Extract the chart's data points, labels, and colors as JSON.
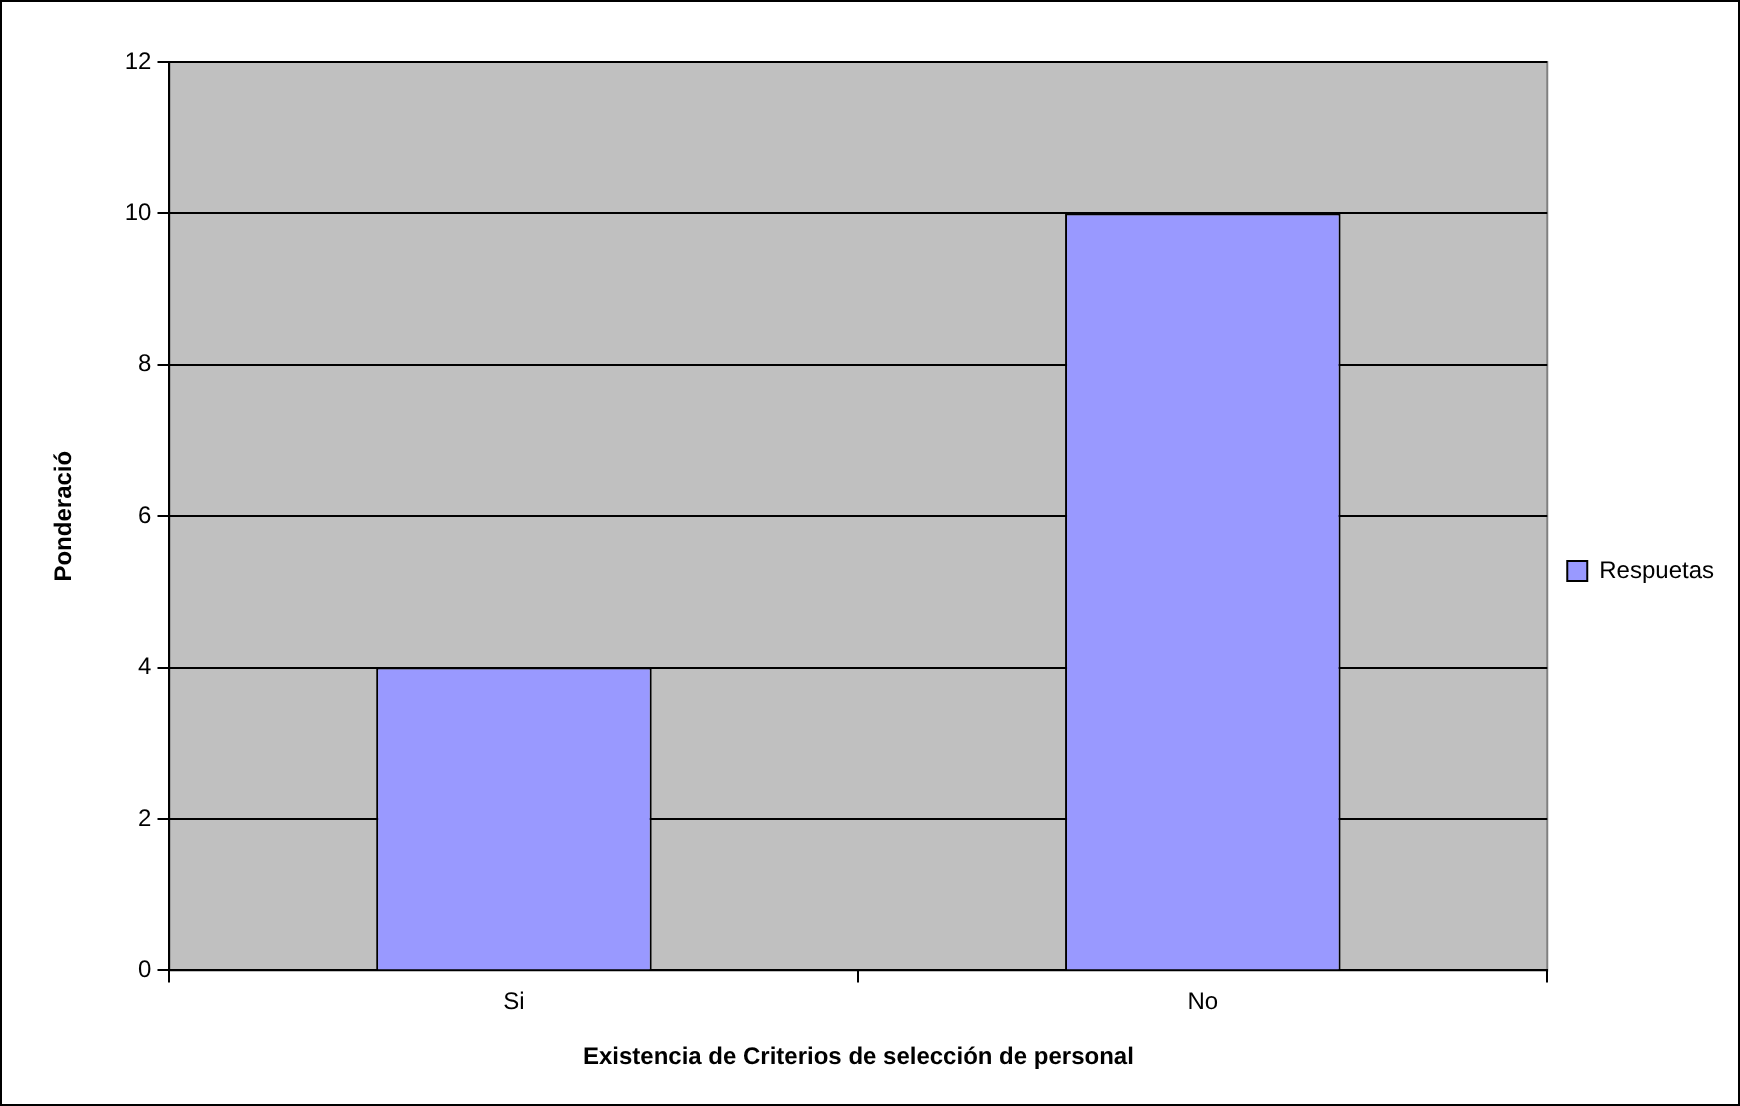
{
  "chart_data": {
    "type": "bar",
    "xlabel": "Existencia de Criterios de selección de personal",
    "ylabel": "Ponderació",
    "categories": [
      "Si",
      "No"
    ],
    "series": [
      {
        "name": "Respuetas",
        "color": "#9999ff",
        "values": [
          4,
          10
        ]
      }
    ],
    "ylim": [
      0,
      12
    ],
    "yticks": [
      0,
      2,
      4,
      6,
      8,
      10,
      12
    ],
    "grid": "y",
    "legend": "right"
  }
}
